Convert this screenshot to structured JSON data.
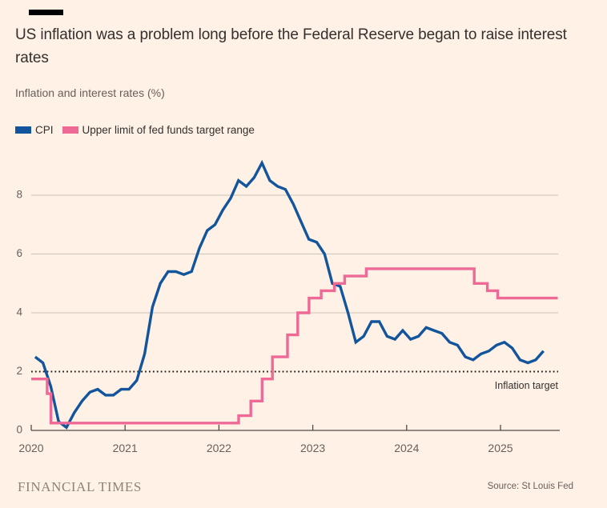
{
  "header": {
    "title": "US inflation was a problem long before the Federal Reserve began to raise interest rates",
    "subtitle": "Inflation and interest rates (%)"
  },
  "legend": [
    {
      "label": "CPI",
      "color": "#12559C"
    },
    {
      "label": "Upper limit of fed funds target range",
      "color": "#EE6996"
    }
  ],
  "footer": {
    "brand": "FINANCIAL TIMES",
    "source": "Source: St Louis Fed"
  },
  "colors": {
    "background": "#FFF1E5",
    "title_text": "#33302E",
    "muted_text": "#66605C",
    "gridline": "#CCC3B8",
    "axis": "#504B47",
    "target_line": "#1F1C1A",
    "cpi_blue": "#12559C",
    "fed_pink": "#EE6996",
    "brand_text": "#8B8479"
  },
  "chart_data": {
    "type": "line",
    "title": "US inflation was a problem long before the Federal Reserve began to raise interest rates",
    "ylabel": "Inflation and interest rates (%)",
    "xlabel": "",
    "ylim": [
      0,
      9.5
    ],
    "yticks": [
      0,
      2,
      4,
      6,
      8
    ],
    "xticks": [
      2020,
      2021,
      2022,
      2023,
      2024,
      2025
    ],
    "grid": true,
    "legend_position": "top-left",
    "reference_line": {
      "value": 2,
      "label": "Inflation target",
      "style": "dotted"
    },
    "series": [
      {
        "name": "CPI",
        "color": "#12559C",
        "mode": "monthly",
        "start_year": 2020,
        "values": [
          2.5,
          2.3,
          1.5,
          0.3,
          0.1,
          0.6,
          1.0,
          1.3,
          1.4,
          1.2,
          1.2,
          1.4,
          1.4,
          1.7,
          2.6,
          4.2,
          5.0,
          5.4,
          5.4,
          5.3,
          5.4,
          6.2,
          6.8,
          7.0,
          7.5,
          7.9,
          8.5,
          8.3,
          8.6,
          9.1,
          8.5,
          8.3,
          8.2,
          7.7,
          7.1,
          6.5,
          6.4,
          6.0,
          5.0,
          4.9,
          4.0,
          3.0,
          3.2,
          3.7,
          3.7,
          3.2,
          3.1,
          3.4,
          3.1,
          3.2,
          3.5,
          3.4,
          3.3,
          3.0,
          2.9,
          2.5,
          2.4,
          2.6,
          2.7,
          2.9,
          3.0,
          2.8,
          2.4,
          2.3,
          2.4,
          2.7
        ]
      },
      {
        "name": "Upper limit of fed funds target range",
        "color": "#EE6996",
        "mode": "step",
        "points": [
          [
            2020.0,
            1.75
          ],
          [
            2020.17,
            1.25
          ],
          [
            2020.21,
            0.25
          ],
          [
            2022.21,
            0.5
          ],
          [
            2022.34,
            1.0
          ],
          [
            2022.46,
            1.75
          ],
          [
            2022.57,
            2.5
          ],
          [
            2022.73,
            3.25
          ],
          [
            2022.84,
            4.0
          ],
          [
            2022.96,
            4.5
          ],
          [
            2023.09,
            4.75
          ],
          [
            2023.23,
            5.0
          ],
          [
            2023.34,
            5.25
          ],
          [
            2023.57,
            5.5
          ],
          [
            2024.72,
            5.0
          ],
          [
            2024.86,
            4.75
          ],
          [
            2024.97,
            4.5
          ],
          [
            2025.61,
            4.5
          ]
        ]
      }
    ]
  }
}
